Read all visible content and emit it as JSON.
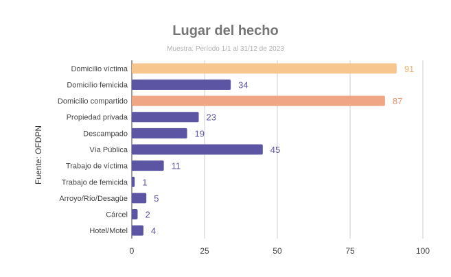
{
  "chart_data": {
    "type": "bar",
    "orientation": "horizontal",
    "title": "Lugar del hecho",
    "subtitle": "Muestra: Período 1/1 al 31/12  de 2023",
    "ylabel": "Fuente: OFDPN",
    "xlabel": "",
    "xlim": [
      0,
      100
    ],
    "xticks": [
      0,
      25,
      50,
      75,
      100
    ],
    "grid": "vertical",
    "categories": [
      "Domicilio víctima",
      "Domicilio femicida",
      "Domicilio compartido",
      "Propiedad privada",
      "Descampado",
      "Vía Pública",
      "Trabajo de víctima",
      "Trabajo de femicida",
      "Arroyo/Río/Desagüe",
      "Cárcel",
      "Hotel/Motel"
    ],
    "values": [
      91,
      34,
      87,
      23,
      19,
      45,
      11,
      1,
      5,
      2,
      4
    ],
    "colors": {
      "default": "#5c55a3",
      "highlight": [
        "#f7c68e",
        null,
        "#f0a585",
        null,
        null,
        null,
        null,
        null,
        null,
        null,
        null
      ],
      "label_default": "#5c55a3",
      "label_highlight": [
        "#f2b46e",
        null,
        "#e98f6b",
        null,
        null,
        null,
        null,
        null,
        null,
        null,
        null
      ]
    }
  }
}
